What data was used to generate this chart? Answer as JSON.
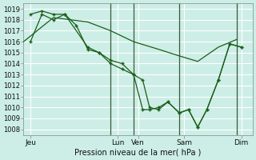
{
  "bg_color": "#cceee6",
  "plot_bg_color": "#cceee6",
  "grid_color": "#ffffff",
  "line_color": "#1a5e1a",
  "vline_color": "#3a5a3a",
  "xlabel": "Pression niveau de la mer( hPa )",
  "ylim": [
    1007.5,
    1019.5
  ],
  "ytick_vals": [
    1008,
    1009,
    1010,
    1011,
    1012,
    1013,
    1014,
    1015,
    1016,
    1017,
    1018,
    1019
  ],
  "xlim": [
    0,
    10.0
  ],
  "day_labels": [
    "Jeu",
    "Lun",
    "Ven",
    "Sam",
    "Dim"
  ],
  "day_positions": [
    0.3,
    4.1,
    5.0,
    7.0,
    9.5
  ],
  "vline_positions": [
    3.8,
    4.8,
    6.8,
    9.3
  ],
  "series1_x": [
    0.3,
    0.8,
    1.3,
    1.8,
    2.8,
    3.3,
    3.8,
    4.3,
    4.8,
    5.2,
    5.5,
    5.9,
    6.3,
    6.8,
    7.2,
    7.6,
    8.0,
    8.5,
    9.0,
    9.5
  ],
  "series1_y": [
    1018.5,
    1018.8,
    1018.5,
    1018.5,
    1015.5,
    1015.0,
    1014.3,
    1014.0,
    1013.0,
    1012.5,
    1010.0,
    1009.8,
    1010.5,
    1009.5,
    1009.8,
    1008.2,
    1009.8,
    1012.5,
    1015.8,
    1015.5
  ],
  "series2_x": [
    0.3,
    0.8,
    1.3,
    1.8,
    2.3,
    2.8,
    3.3,
    3.8,
    4.3,
    4.8,
    5.2,
    5.5,
    5.9,
    6.3,
    6.8,
    7.2,
    7.6,
    8.0,
    8.5,
    9.0,
    9.5
  ],
  "series2_y": [
    1016.0,
    1018.5,
    1018.0,
    1018.5,
    1017.5,
    1015.3,
    1015.0,
    1014.0,
    1013.5,
    1013.0,
    1009.8,
    1009.8,
    1010.0,
    1010.5,
    1009.5,
    1009.8,
    1008.2,
    1009.8,
    1012.5,
    1015.8,
    1015.5
  ],
  "series3_x": [
    0.0,
    1.3,
    2.8,
    3.8,
    4.8,
    5.9,
    6.8,
    7.6,
    8.5,
    9.3
  ],
  "series3_y": [
    1016.0,
    1018.2,
    1017.8,
    1017.0,
    1016.0,
    1015.3,
    1014.7,
    1014.2,
    1015.5,
    1016.2
  ]
}
